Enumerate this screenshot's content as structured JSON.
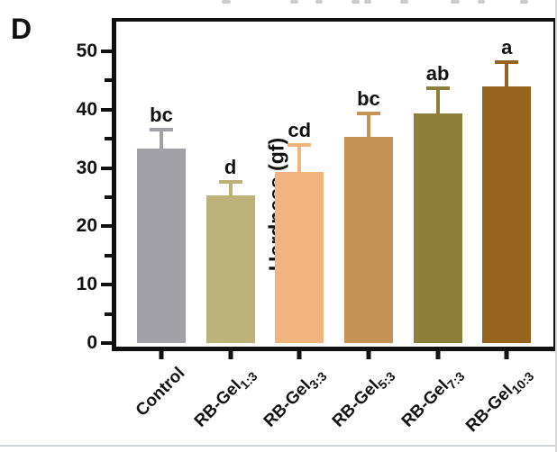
{
  "panel": {
    "label": "D"
  },
  "chart_data": {
    "type": "bar",
    "title": "",
    "xlabel": "",
    "ylabel": "Hardness (gf)",
    "ylim": [
      0,
      55
    ],
    "yticks": [
      0,
      10,
      20,
      30,
      40,
      50
    ],
    "grid": false,
    "legend": "none",
    "error_bars": "sd, upper only",
    "bars": [
      {
        "label": "Control",
        "subscript": "",
        "value": 33.3,
        "error": 3.3,
        "sig_letter": "bc",
        "color": "#a1a1a7"
      },
      {
        "label": "RB-Gel",
        "subscript": "1:3",
        "value": 25.3,
        "error": 2.3,
        "sig_letter": "d",
        "color": "#bdb279"
      },
      {
        "label": "RB-Gel",
        "subscript": "3:3",
        "value": 29.3,
        "error": 4.6,
        "sig_letter": "cd",
        "color": "#f2b47e"
      },
      {
        "label": "RB-Gel",
        "subscript": "5:3",
        "value": 35.3,
        "error": 4.1,
        "sig_letter": "bc",
        "color": "#c59454"
      },
      {
        "label": "RB-Gel",
        "subscript": "7:3",
        "value": 39.3,
        "error": 4.3,
        "sig_letter": "ab",
        "color": "#8d7e3a"
      },
      {
        "label": "RB-Gel",
        "subscript": "10:3",
        "value": 44.0,
        "error": 4.2,
        "sig_letter": "a",
        "color": "#97641f"
      }
    ],
    "colors": {
      "axis": "#111111",
      "text": "#111111",
      "background": "#ffffff"
    }
  }
}
